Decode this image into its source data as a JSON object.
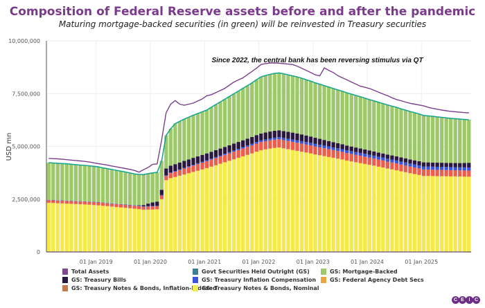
{
  "title": "Composition of Federal Reserve assets before and after the pandemic",
  "subtitle": "Maturing mortgage-backed securities (in green) will be reinvested in Treasury securities",
  "logo_text": "CEIC",
  "chart_data": {
    "type": "bar",
    "stacked": true,
    "ylabel": "USD mn",
    "ylim": [
      0,
      10000000
    ],
    "yticks": [
      "0",
      "2,500,000",
      "5,000,000",
      "7,500,000",
      "10,000,000"
    ],
    "ytick_values": [
      0,
      2500000,
      5000000,
      7500000,
      10000000
    ],
    "xticks": [
      "01 Jan 2019",
      "01 Jan 2020",
      "01 Jan 2021",
      "01 Jan 2022",
      "01 Jan 2023",
      "01 Jan 2024",
      "01 Jan 2025"
    ],
    "x_start": "2018-02",
    "x_end": "2025-11",
    "frequency": "monthly",
    "grid": true,
    "legend_position": "bottom",
    "annotation": "Since 2022, the central bank has been reversing stimulus via QT",
    "series": [
      {
        "name": "Total Assets",
        "kind": "line",
        "color": "#7b3f8e",
        "values": [
          4430000,
          4420000,
          4410000,
          4390000,
          4370000,
          4350000,
          4330000,
          4310000,
          4290000,
          4260000,
          4220000,
          4180000,
          4150000,
          4110000,
          4070000,
          4030000,
          3990000,
          3950000,
          3910000,
          3860000,
          3780000,
          3900000,
          4000000,
          4150000,
          4170000,
          5300000,
          6600000,
          7000000,
          7170000,
          7000000,
          6950000,
          7000000,
          7050000,
          7150000,
          7250000,
          7400000,
          7450000,
          7550000,
          7650000,
          7750000,
          7900000,
          8050000,
          8150000,
          8250000,
          8400000,
          8550000,
          8700000,
          8880000,
          8920000,
          8950000,
          8950000,
          8940000,
          8920000,
          8900000,
          8880000,
          8800000,
          8700000,
          8600000,
          8500000,
          8390000,
          8340000,
          8720000,
          8600000,
          8500000,
          8350000,
          8250000,
          8150000,
          8050000,
          7950000,
          7850000,
          7800000,
          7740000,
          7660000,
          7570000,
          7480000,
          7400000,
          7300000,
          7220000,
          7160000,
          7100000,
          7040000,
          7000000,
          6960000,
          6920000,
          6850000,
          6800000,
          6760000,
          6720000,
          6690000,
          6660000,
          6640000,
          6620000,
          6600000,
          6590000
        ]
      },
      {
        "name": "Govt Securities Held Outright (GS)",
        "kind": "line",
        "color": "#1ba58e",
        "values": "sum_of_gs_components"
      },
      {
        "name": "GS: Mortgage-Backed",
        "kind": "bar",
        "color": "#9ec96b",
        "values": [
          1760000,
          1755000,
          1750000,
          1745000,
          1740000,
          1730000,
          1720000,
          1710000,
          1700000,
          1690000,
          1680000,
          1670000,
          1640000,
          1620000,
          1600000,
          1580000,
          1560000,
          1540000,
          1510000,
          1480000,
          1460000,
          1440000,
          1420000,
          1400000,
          1380000,
          1370000,
          1570000,
          1750000,
          1920000,
          1950000,
          1980000,
          2000000,
          2020000,
          2030000,
          2040000,
          2050000,
          2110000,
          2160000,
          2210000,
          2260000,
          2310000,
          2360000,
          2410000,
          2460000,
          2510000,
          2560000,
          2620000,
          2680000,
          2700000,
          2710000,
          2720000,
          2720000,
          2710000,
          2700000,
          2690000,
          2680000,
          2660000,
          2640000,
          2620000,
          2600000,
          2585000,
          2570000,
          2555000,
          2540000,
          2525000,
          2510000,
          2495000,
          2480000,
          2465000,
          2450000,
          2430000,
          2410000,
          2395000,
          2380000,
          2365000,
          2350000,
          2335000,
          2320000,
          2300000,
          2285000,
          2270000,
          2255000,
          2240000,
          2220000,
          2205000,
          2190000,
          2170000,
          2150000,
          2130000,
          2110000,
          2095000,
          2080000,
          2060000,
          2040000
        ]
      },
      {
        "name": "GS: Treasury Bills",
        "kind": "bar",
        "color": "#2a1840",
        "values": [
          0,
          0,
          0,
          0,
          0,
          0,
          0,
          0,
          0,
          0,
          0,
          0,
          0,
          0,
          0,
          0,
          0,
          0,
          0,
          0,
          20000,
          60000,
          120000,
          170000,
          200000,
          250000,
          326000,
          326000,
          326000,
          326000,
          326000,
          326000,
          326000,
          326000,
          326000,
          326000,
          326000,
          326000,
          326000,
          326000,
          326000,
          326000,
          326000,
          326000,
          326000,
          326000,
          326000,
          326000,
          326000,
          326000,
          326000,
          326000,
          326000,
          326000,
          326000,
          326000,
          320000,
          310000,
          300000,
          290000,
          280000,
          270000,
          260000,
          250000,
          240000,
          232000,
          225000,
          220000,
          215000,
          210000,
          205000,
          200000,
          198000,
          196000,
          195000,
          195000,
          195000,
          195000,
          195000,
          195000,
          195000,
          195000,
          195000,
          195000,
          195000,
          195000,
          195000,
          195000,
          195000,
          195000,
          195000,
          200000,
          210000,
          220000
        ]
      },
      {
        "name": "GS: Treasury Inflation Compensation",
        "kind": "bar",
        "color": "#3b55d6",
        "values": [
          15000,
          15000,
          15000,
          16000,
          16000,
          16000,
          16000,
          16000,
          17000,
          17000,
          17000,
          17000,
          17000,
          18000,
          18000,
          18000,
          18000,
          18000,
          19000,
          19000,
          19000,
          19000,
          20000,
          20000,
          20000,
          22000,
          25000,
          28000,
          30000,
          32000,
          34000,
          36000,
          38000,
          40000,
          42000,
          44000,
          46000,
          48000,
          50000,
          53000,
          56000,
          59000,
          62000,
          66000,
          70000,
          74000,
          78000,
          82000,
          86000,
          90000,
          94000,
          98000,
          102000,
          106000,
          110000,
          113000,
          116000,
          118000,
          120000,
          122000,
          124000,
          125000,
          126000,
          127000,
          128000,
          129000,
          130000,
          131000,
          132000,
          133000,
          134000,
          135000,
          136000,
          137000,
          138000,
          139000,
          140000,
          140000,
          141000,
          141000,
          142000,
          142000,
          143000,
          143000,
          144000,
          144000,
          145000,
          145000,
          146000,
          146000,
          147000,
          147000,
          148000,
          148000
        ]
      },
      {
        "name": "GS: Federal Agency Debt Secs",
        "kind": "bar",
        "color": "#eaa53f",
        "values": [
          2347,
          2347,
          2347,
          2347,
          2347,
          2347,
          2347,
          2347,
          2347,
          2347,
          2347,
          2347,
          2347,
          2347,
          2347,
          2347,
          2347,
          2347,
          2347,
          2347,
          2347,
          2347,
          2347,
          2347,
          2347,
          2347,
          2347,
          2347,
          2347,
          2347,
          2347,
          2347,
          2347,
          2347,
          2347,
          2347,
          2347,
          2347,
          2347,
          2347,
          2347,
          2347,
          2347,
          2347,
          2347,
          2347,
          2347,
          2347,
          2347,
          2347,
          2347,
          2347,
          2347,
          2347,
          2347,
          2347,
          2347,
          2347,
          2347,
          2347,
          2347,
          2347,
          2347,
          2347,
          2347,
          2347,
          2347,
          2347,
          2347,
          2347,
          2347,
          2347,
          2347,
          2347,
          2347,
          2347,
          2347,
          2347,
          2347,
          2347,
          2347,
          2347,
          2347,
          2347,
          2347,
          2347,
          2347,
          2347,
          2347,
          2347,
          2347,
          2347,
          2347,
          2347
        ]
      },
      {
        "name": "GS: Treasury Notes & Bonds, Inflation-Indexed",
        "kind": "bar",
        "color": "#ec5e4c",
        "values": [
          120000,
          121000,
          122000,
          123000,
          124000,
          125000,
          126000,
          127000,
          128000,
          129000,
          130000,
          131000,
          132000,
          133000,
          134000,
          135000,
          136000,
          137000,
          138000,
          139000,
          140000,
          141000,
          142000,
          143000,
          144000,
          170000,
          200000,
          230000,
          250000,
          265000,
          280000,
          290000,
          300000,
          310000,
          318000,
          325000,
          330000,
          335000,
          340000,
          345000,
          350000,
          355000,
          360000,
          365000,
          370000,
          375000,
          378000,
          380000,
          382000,
          384000,
          385000,
          386000,
          386000,
          385000,
          384000,
          382000,
          380000,
          378000,
          376000,
          374000,
          372000,
          369000,
          366000,
          363000,
          360000,
          357000,
          354000,
          351000,
          348000,
          345000,
          342000,
          339000,
          336000,
          333000,
          330000,
          327000,
          324000,
          321000,
          318000,
          315000,
          312000,
          309000,
          306000,
          303000,
          300000,
          298000,
          296000,
          294000,
          292000,
          290000,
          288000,
          286000,
          284000,
          282000
        ]
      },
      {
        "name": "GS: Treasury Notes & Bonds, Nominal",
        "kind": "bar",
        "color": "#f6ea4a",
        "values": [
          2330000,
          2320000,
          2310000,
          2300000,
          2290000,
          2280000,
          2270000,
          2260000,
          2250000,
          2240000,
          2225000,
          2210000,
          2190000,
          2170000,
          2150000,
          2130000,
          2110000,
          2090000,
          2070000,
          2050000,
          2030000,
          2000000,
          2005000,
          2010000,
          2020000,
          2500000,
          3400000,
          3500000,
          3550000,
          3610000,
          3670000,
          3730000,
          3790000,
          3850000,
          3910000,
          3970000,
          4040000,
          4110000,
          4180000,
          4250000,
          4320000,
          4390000,
          4460000,
          4530000,
          4600000,
          4670000,
          4750000,
          4820000,
          4860000,
          4900000,
          4930000,
          4950000,
          4910000,
          4870000,
          4830000,
          4790000,
          4750000,
          4710000,
          4670000,
          4620000,
          4580000,
          4540000,
          4500000,
          4460000,
          4420000,
          4380000,
          4330000,
          4290000,
          4250000,
          4210000,
          4170000,
          4130000,
          4090000,
          4040000,
          4000000,
          3950000,
          3910000,
          3870000,
          3820000,
          3780000,
          3730000,
          3690000,
          3650000,
          3600000,
          3600000,
          3595000,
          3590000,
          3590000,
          3585000,
          3580000,
          3580000,
          3575000,
          3570000,
          3570000
        ]
      }
    ]
  },
  "legend": [
    {
      "label": "Total Assets",
      "color": "#7b4a93"
    },
    {
      "label": "Govt Securities Held Outright (GS)",
      "color": "#3f7f96"
    },
    {
      "label": "GS: Mortgage-Backed",
      "color": "#9ec96b"
    },
    {
      "label": "GS: Treasury Bills",
      "color": "#2a1840"
    },
    {
      "label": "GS: Treasury Inflation Compensation",
      "color": "#3b55d6"
    },
    {
      "label": "GS: Federal Agency Debt Secs",
      "color": "#eaa53f"
    },
    {
      "label": "GS: Treasury Notes & Bonds, Inflation-Indexed",
      "color": "#c47a4c"
    },
    {
      "label": "GS: Treasury Notes & Bonds, Nominal",
      "color": "#f1ec55"
    }
  ]
}
